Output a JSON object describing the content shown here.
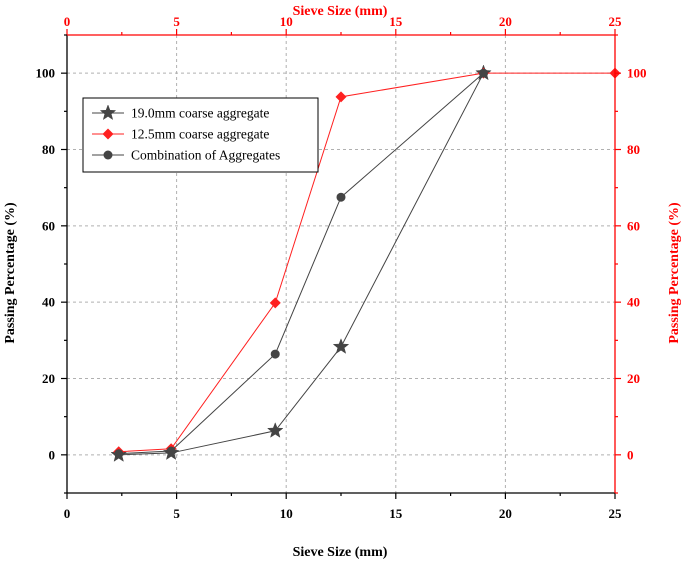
{
  "chart_data": {
    "type": "line",
    "xlabel_bottom": "Sieve Size (mm)",
    "xlabel_top": "Sieve Size (mm)",
    "ylabel_left": "Passing Percentage (%)",
    "ylabel_right": "Passing Percentage (%)",
    "xlim": [
      0,
      25
    ],
    "ylim": [
      -10,
      110
    ],
    "x_ticks": [
      0,
      5,
      10,
      15,
      20,
      25
    ],
    "y_ticks": [
      0,
      20,
      40,
      60,
      80,
      100
    ],
    "grid": true,
    "legend_position": "top-left",
    "colors": {
      "left_axis": "#000000",
      "right_axis": "#ff0000",
      "top_axis": "#ff0000",
      "grid": "#b0b0b0"
    },
    "series": [
      {
        "name": "19.0mm coarse aggregate",
        "marker": "star",
        "color": "#444444",
        "x": [
          2.36,
          4.75,
          9.5,
          12.5,
          19
        ],
        "y": [
          0,
          0.5,
          6.3,
          28.3,
          100
        ]
      },
      {
        "name": "12.5mm coarse aggregate",
        "marker": "diamond",
        "color": "#ff2020",
        "x": [
          2.36,
          4.75,
          9.5,
          12.5,
          19,
          25
        ],
        "y": [
          0.8,
          1.6,
          39.8,
          93.8,
          100,
          100
        ]
      },
      {
        "name": "Combination of Aggregates",
        "marker": "circle",
        "color": "#444444",
        "x": [
          2.36,
          4.75,
          9.5,
          12.5,
          19
        ],
        "y": [
          0.3,
          1.0,
          26.4,
          67.5,
          100
        ]
      }
    ]
  }
}
